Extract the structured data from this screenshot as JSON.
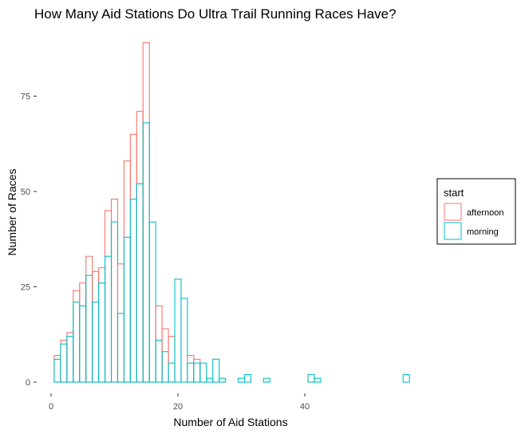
{
  "chart_data": {
    "type": "bar",
    "subtype": "stacked-histogram-outline",
    "title": "How Many Aid Stations Do Ultra Trail Running Races Have?",
    "xlabel": "Number of Aid Stations",
    "ylabel": "Number of Races",
    "xlim": [
      -1,
      58
    ],
    "ylim": [
      0,
      90
    ],
    "x_ticks": [
      0,
      20,
      40
    ],
    "y_ticks": [
      0,
      25,
      50,
      75
    ],
    "x_tick_labels": [
      "0",
      "20",
      "40"
    ],
    "y_tick_labels": [
      "0",
      "25",
      "50",
      "75"
    ],
    "grid": false,
    "legend_position": "right",
    "legend_title": "start",
    "x": [
      1,
      2,
      3,
      4,
      5,
      6,
      7,
      8,
      9,
      10,
      11,
      12,
      13,
      14,
      15,
      16,
      17,
      18,
      19,
      20,
      21,
      22,
      23,
      24,
      25,
      26,
      27,
      30,
      31,
      34,
      41,
      42,
      56
    ],
    "series": [
      {
        "name": "morning",
        "color": "#00bfc4",
        "values": [
          6,
          10,
          12,
          21,
          20,
          28,
          21,
          26,
          33,
          42,
          18,
          38,
          48,
          52,
          68,
          42,
          11,
          8,
          5,
          27,
          22,
          5,
          5,
          5,
          1,
          6,
          1,
          1,
          2,
          1,
          2,
          1,
          2
        ]
      },
      {
        "name": "afternoon",
        "color": "#f8766d",
        "values": [
          1,
          1,
          1,
          3,
          6,
          5,
          8,
          4,
          12,
          6,
          13,
          20,
          17,
          19,
          21,
          0,
          9,
          6,
          7,
          0,
          0,
          2,
          1,
          0,
          0,
          0,
          0,
          0,
          0,
          0,
          0,
          0,
          0
        ]
      }
    ]
  }
}
